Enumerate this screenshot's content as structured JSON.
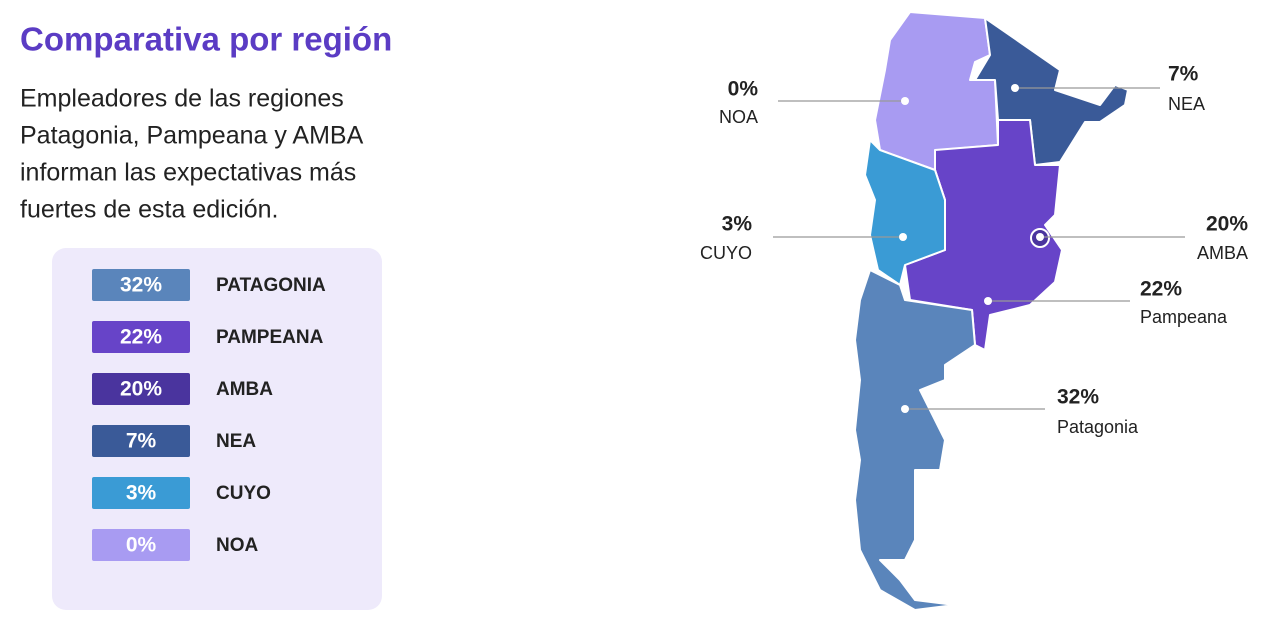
{
  "title": "Comparativa por región",
  "description": [
    "Empleadores de las regiones",
    "Patagonia, Pampeana y AMBA",
    "informan las expectativas más",
    "fuertes de esta edición."
  ],
  "legend": {
    "items": [
      {
        "value": "32%",
        "name": "PATAGONIA",
        "color": "#5a85bb"
      },
      {
        "value": "22%",
        "name": "PAMPEANA",
        "color": "#6744c8"
      },
      {
        "value": "20%",
        "name": "AMBA",
        "color": "#4a349e"
      },
      {
        "value": "7%",
        "name": "NEA",
        "color": "#3a5a98"
      },
      {
        "value": "3%",
        "name": "CUYO",
        "color": "#3a9bd5"
      },
      {
        "value": "0%",
        "name": "NOA",
        "color": "#a89bf2"
      }
    ]
  },
  "map": {
    "labels": [
      {
        "value": "0%",
        "name": "NOA"
      },
      {
        "value": "7%",
        "name": "NEA"
      },
      {
        "value": "3%",
        "name": "CUYO"
      },
      {
        "value": "20%",
        "name": "AMBA"
      },
      {
        "value": "22%",
        "name": "Pampeana"
      },
      {
        "value": "32%",
        "name": "Patagonia"
      }
    ]
  }
}
